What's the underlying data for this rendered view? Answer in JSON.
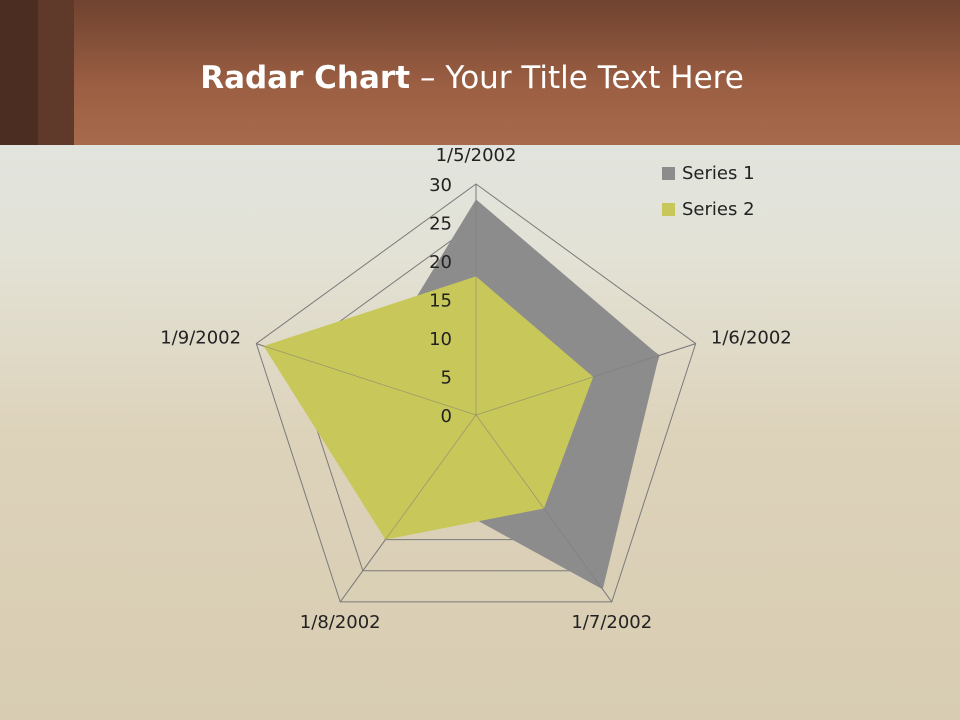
{
  "slide": {
    "title_bold": "Radar Chart",
    "title_rest": "– Your Title Text Here"
  },
  "chart_data": {
    "type": "radar",
    "categories": [
      "1/5/2002",
      "1/6/2002",
      "1/7/2002",
      "1/8/2002",
      "1/9/2002"
    ],
    "series": [
      {
        "name": "Series 1",
        "color": "#8c8c8c",
        "values": [
          28,
          25,
          28,
          12,
          15
        ]
      },
      {
        "name": "Series 2",
        "color": "#c8c85a",
        "values": [
          18,
          16,
          15,
          20,
          29
        ]
      }
    ],
    "ylim": [
      0,
      30
    ],
    "yticks": [
      0,
      5,
      10,
      15,
      20,
      25,
      30
    ],
    "grid": true,
    "legend": "top-right"
  }
}
